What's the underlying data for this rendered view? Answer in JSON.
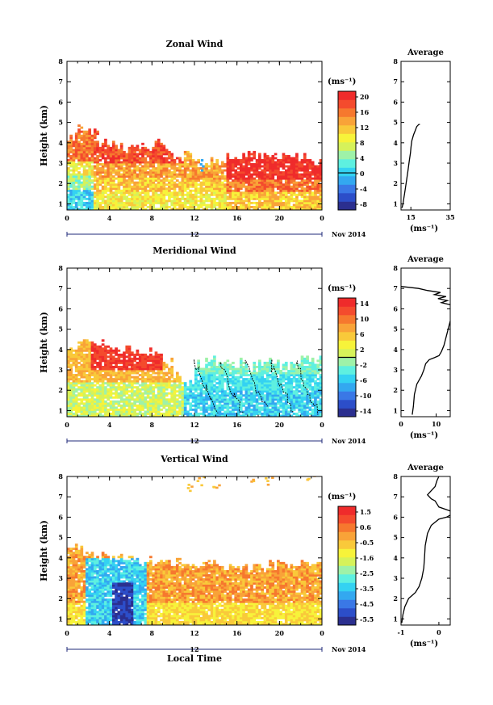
{
  "colors": {
    "colorbar_scale": [
      "#2b2f8f",
      "#2c4ec9",
      "#3a78e6",
      "#33a8f0",
      "#34d2f2",
      "#5ef0e0",
      "#9ef2a8",
      "#d6f25a",
      "#f7f33a",
      "#f9c93a",
      "#f9a338",
      "#f6782e",
      "#f44b2d",
      "#ef2b2b"
    ],
    "contour": "#000000"
  },
  "chart_data": [
    {
      "id": "zonal",
      "type": "heatmap",
      "title": "Zonal Wind",
      "ylabel": "Height (km)",
      "xlabel": "",
      "x_ticks": [
        "0",
        "4",
        "8",
        "12",
        "16",
        "20",
        "0"
      ],
      "xlim": [
        0,
        24
      ],
      "y_ticks": [
        "1",
        "2",
        "3",
        "4",
        "5",
        "6",
        "7",
        "8"
      ],
      "ylim": [
        0.7,
        8.0
      ],
      "date_label": "12",
      "date_suffix": "Nov 2014",
      "colorbar": {
        "unit": "(ms⁻¹)",
        "ticks": [
          "20",
          "16",
          "12",
          "8",
          "4",
          "0",
          "-4",
          "-8"
        ],
        "range": [
          -10,
          22
        ],
        "zero_line": 0
      },
      "data_top_km": [
        4.3,
        4.6,
        4.5,
        4.0,
        3.9,
        3.7,
        3.8,
        3.7,
        3.9,
        3.6,
        3.2,
        3.4,
        3.0,
        3.0,
        3.0,
        3.2,
        3.3,
        3.4,
        3.4,
        3.3,
        3.3,
        3.2,
        3.2,
        3.0
      ],
      "profile": {
        "title": "Average",
        "xlabel": "(ms⁻¹)",
        "x_ticks": [
          "15",
          "35"
        ],
        "xlim": [
          10,
          35
        ],
        "points": [
          [
            10.5,
            0.8
          ],
          [
            11,
            1.0
          ],
          [
            11.8,
            1.5
          ],
          [
            12.6,
            2.0
          ],
          [
            13.5,
            2.6
          ],
          [
            14.2,
            3.1
          ],
          [
            14.8,
            3.5
          ],
          [
            15.1,
            3.8
          ],
          [
            15.5,
            4.1
          ],
          [
            16.4,
            4.4
          ],
          [
            17.2,
            4.6
          ],
          [
            18.0,
            4.8
          ],
          [
            19.0,
            4.9
          ],
          [
            19.6,
            4.9
          ]
        ]
      }
    },
    {
      "id": "meridional",
      "type": "heatmap",
      "title": "Meridional Wind",
      "ylabel": "Height (km)",
      "xlabel": "",
      "x_ticks": [
        "0",
        "4",
        "8",
        "12",
        "16",
        "20",
        "0"
      ],
      "xlim": [
        0,
        24
      ],
      "y_ticks": [
        "1",
        "2",
        "3",
        "4",
        "5",
        "6",
        "7",
        "8"
      ],
      "ylim": [
        0.7,
        8.0
      ],
      "date_label": "12",
      "date_suffix": "Nov 2014",
      "colorbar": {
        "unit": "(ms⁻¹)",
        "ticks": [
          "14",
          "10",
          "6",
          "2",
          "-2",
          "-6",
          "-10",
          "-14"
        ],
        "range": [
          -16,
          16
        ],
        "zero_line": 0
      },
      "data_top_km": [
        4.1,
        4.3,
        4.4,
        4.3,
        4.1,
        4.0,
        3.9,
        3.8,
        3.6,
        3.3,
        2.7,
        2.3,
        3.3,
        3.4,
        3.4,
        3.3,
        3.3,
        3.2,
        3.3,
        3.4,
        3.2,
        3.4,
        3.5,
        3.4
      ],
      "profile": {
        "title": "Average",
        "xlabel": "(ms⁻¹)",
        "x_ticks": [
          "0",
          "10"
        ],
        "xlim": [
          0,
          14
        ],
        "points": [
          [
            3.2,
            0.8
          ],
          [
            3.5,
            1.2
          ],
          [
            3.8,
            1.8
          ],
          [
            4.5,
            2.3
          ],
          [
            5.8,
            2.7
          ],
          [
            6.5,
            3.0
          ],
          [
            7.0,
            3.3
          ],
          [
            8.0,
            3.5
          ],
          [
            9.5,
            3.6
          ],
          [
            10.8,
            3.7
          ],
          [
            11.5,
            3.9
          ],
          [
            12.2,
            4.2
          ],
          [
            12.8,
            4.6
          ],
          [
            13.4,
            5.0
          ],
          [
            14.0,
            5.4
          ]
        ],
        "points_upper": [
          [
            14,
            6.2
          ],
          [
            11.5,
            6.3
          ],
          [
            13.2,
            6.4
          ],
          [
            10.5,
            6.5
          ],
          [
            12.8,
            6.6
          ],
          [
            9.5,
            6.7
          ],
          [
            11.2,
            6.8
          ],
          [
            7.5,
            6.9
          ],
          [
            5.0,
            7.0
          ],
          [
            0,
            7.1
          ]
        ]
      }
    },
    {
      "id": "vertical",
      "type": "heatmap",
      "title": "Vertical Wind",
      "ylabel": "Height (km)",
      "xlabel": "Local Time",
      "x_ticks": [
        "0",
        "4",
        "8",
        "12",
        "16",
        "20",
        "0"
      ],
      "xlim": [
        0,
        24
      ],
      "y_ticks": [
        "1",
        "2",
        "3",
        "4",
        "5",
        "6",
        "7",
        "8"
      ],
      "ylim": [
        0.7,
        8.0
      ],
      "date_label": "12",
      "date_suffix": "Nov 2014",
      "colorbar": {
        "unit": "(ms⁻¹)",
        "ticks": [
          "1.5",
          "0.6",
          "-0.5",
          "-1.6",
          "-2.5",
          "-3.5",
          "-4.5",
          "-5.5"
        ],
        "range": [
          -6.0,
          2.0
        ],
        "zero_line": null
      },
      "data_top_km": [
        4.4,
        4.3,
        4.2,
        4.1,
        4.0,
        4.0,
        3.9,
        3.9,
        3.8,
        3.8,
        3.8,
        3.7,
        3.7,
        3.6,
        3.5,
        3.5,
        3.5,
        3.5,
        3.5,
        3.6,
        3.7,
        3.7,
        3.7,
        3.7
      ],
      "profile": {
        "title": "Average",
        "xlabel": "(ms⁻¹)",
        "x_ticks": [
          "-1",
          "0"
        ],
        "xlim": [
          -1.0,
          0.3
        ],
        "points": [
          [
            -0.98,
            0.8
          ],
          [
            -0.95,
            1.2
          ],
          [
            -0.9,
            1.6
          ],
          [
            -0.8,
            2.0
          ],
          [
            -0.62,
            2.3
          ],
          [
            -0.52,
            2.6
          ],
          [
            -0.45,
            3.0
          ],
          [
            -0.4,
            3.5
          ],
          [
            -0.38,
            4.0
          ],
          [
            -0.36,
            4.6
          ],
          [
            -0.3,
            5.2
          ],
          [
            -0.2,
            5.6
          ],
          [
            0.0,
            5.9
          ],
          [
            0.2,
            6.0
          ],
          [
            0.3,
            6.1
          ]
        ],
        "points_upper": [
          [
            0.3,
            6.3
          ],
          [
            0.0,
            6.5
          ],
          [
            -0.1,
            6.8
          ],
          [
            -0.2,
            6.9
          ],
          [
            -0.3,
            7.1
          ],
          [
            -0.2,
            7.3
          ],
          [
            -0.1,
            7.5
          ],
          [
            -0.05,
            7.8
          ],
          [
            0.0,
            8.0
          ]
        ]
      }
    }
  ]
}
